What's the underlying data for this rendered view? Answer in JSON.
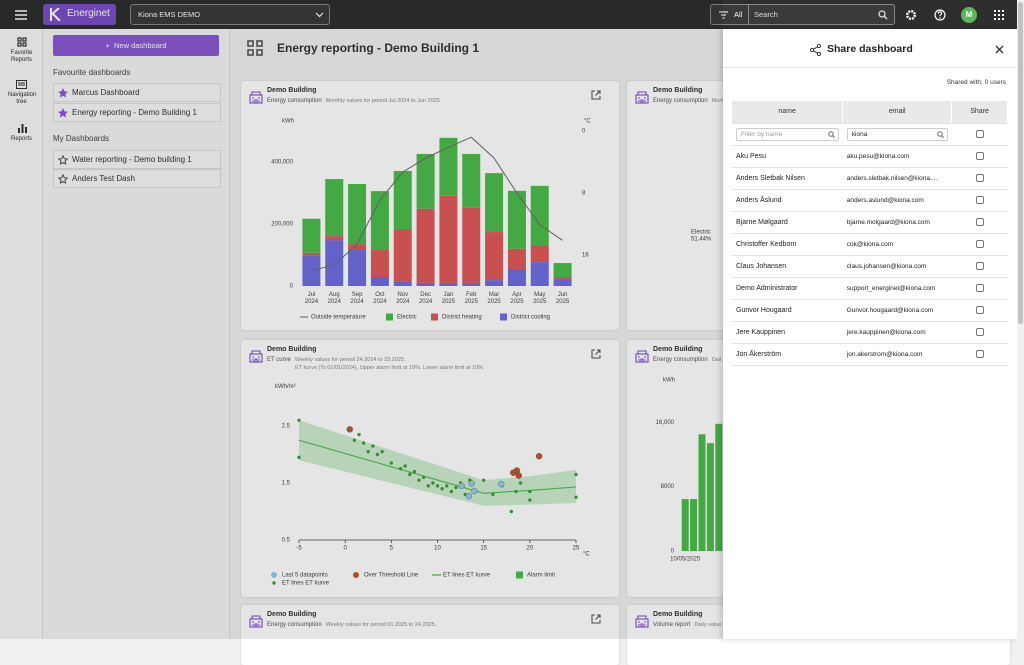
{
  "topbar": {
    "logo": "Energinet",
    "site": "Kiona EMS DEMO",
    "filter": "All",
    "search": "Search",
    "avatar": "M"
  },
  "rail": [
    "Favorite Reports",
    "Navigation tree",
    "Reports"
  ],
  "sidebar": {
    "new_button": "New dashboard",
    "favourites_title": "Favourite dashboards",
    "favourites": [
      "Marcus Dashboard",
      "Energy reporting - Demo Building 1"
    ],
    "mine_title": "My Dashboards",
    "mine": [
      "Water reporting - Demo building 1",
      "Anders Test Dash"
    ]
  },
  "main": {
    "title": "Energy reporting - Demo Building 1"
  },
  "cards": [
    {
      "building": "Demo Building",
      "report": "Energy consumption",
      "period": "Monthly values for period Jul 2024 to Jun 2025"
    },
    {
      "building": "Demo Building",
      "report": "Energy consumption",
      "period": "Monthly"
    },
    {
      "building": "Demo Building",
      "report": "ET curve",
      "period": "Weekly values for period 24.2024 to 23.2025.",
      "detail": "ET kurve (Ts 01/01/2024). Upper alarm limit at 10%. Lower alarm limit at 10%"
    },
    {
      "building": "Demo Building",
      "report": "Energy consumption",
      "period": "Dail"
    },
    {
      "building": "Demo Building",
      "report": "Energy consumption",
      "period": "Weekly values for period 01.2025 to 24.2025."
    },
    {
      "building": "Demo Building",
      "report": "Volume report",
      "period": "Daily value"
    }
  ],
  "chart_data": [
    {
      "type": "bar",
      "stacked": true,
      "y_label": "kWh",
      "y2_label": "°C",
      "categories": [
        "Jul 2024",
        "Aug 2024",
        "Sep 2024",
        "Oct 2024",
        "Nov 2024",
        "Dec 2024",
        "Jan 2025",
        "Feb 2025",
        "Mar 2025",
        "Apr 2025",
        "May 2025",
        "Jun 2025"
      ],
      "series": [
        {
          "name": "Outside temperature",
          "type": "line",
          "axis": "y2",
          "color": "#6b6b6b",
          "values": [
            18,
            17.3,
            14.6,
            8.9,
            5.3,
            3.5,
            2.1,
            0.8,
            3.5,
            8,
            12.1,
            14.1
          ]
        },
        {
          "name": "Electric",
          "color": "#4cbb4c",
          "values": [
            110000,
            184000,
            194000,
            190000,
            187000,
            177000,
            187000,
            174000,
            190000,
            187000,
            194000,
            45000
          ]
        },
        {
          "name": "District heating",
          "color": "#e05a5a",
          "values": [
            10000,
            13000,
            19000,
            87000,
            171000,
            239000,
            281000,
            242000,
            155000,
            65000,
            52000,
            6000
          ]
        },
        {
          "name": "District cooling",
          "color": "#6e6ee0",
          "values": [
            97000,
            148000,
            116000,
            29000,
            13000,
            10000,
            10000,
            10000,
            19000,
            55000,
            77000,
            23000
          ]
        }
      ],
      "ylim": [
        0,
        500000
      ],
      "yticks": [
        0,
        {
          "value": 200000,
          "label": "200,000"
        },
        {
          "value": 400000,
          "label": "400,000"
        }
      ],
      "y2lim": [
        20,
        0
      ],
      "y2ticks": [
        0,
        8,
        16
      ]
    },
    {
      "type": "pie",
      "categories": [
        "Electric"
      ],
      "values": [
        51.44
      ],
      "value_labels": [
        "51.44%"
      ]
    },
    {
      "type": "scatter",
      "y_label": "kWh/m²",
      "x_label": "°C",
      "series": [
        {
          "name": "Last 5 datapoints",
          "color": "#8fd0ea",
          "x": [
            13.7,
            14,
            13.4,
            12.6,
            16.9
          ],
          "y": [
            1.49,
            1.36,
            1.27,
            1.45,
            1.48
          ]
        },
        {
          "name": "Over Threshold Line",
          "color": "#c9552e",
          "x": [
            0.5,
            18.2,
            18.6,
            18.8,
            21
          ],
          "y": [
            2.44,
            1.68,
            1.72,
            1.63,
            1.97
          ]
        },
        {
          "name": "ET lines ET kurve",
          "type": "line",
          "color": "#4cbb4c",
          "x": [
            -5,
            15,
            20,
            25
          ],
          "y": [
            2.25,
            1.32,
            1.37,
            1.43
          ]
        },
        {
          "name": "Alarm limit",
          "type": "band",
          "color": "#4cbb4c",
          "x": [
            -5,
            15,
            20,
            25
          ],
          "lower": [
            1.9,
            1.1,
            1.12,
            1.15
          ],
          "upper": [
            2.6,
            1.55,
            1.62,
            1.73
          ]
        },
        {
          "name": "ET lines ET kurve",
          "color": "#3f9f3f",
          "x": [
            -5,
            -5,
            1,
            1.5,
            2,
            2.5,
            3,
            3.5,
            4,
            5,
            6,
            6.5,
            7,
            7.5,
            8,
            8.5,
            9,
            9.5,
            10,
            10.5,
            11,
            11.5,
            12,
            12.5,
            13,
            13.5,
            15,
            16,
            17,
            18,
            18.5,
            19,
            20,
            20,
            25,
            25
          ],
          "y": [
            2.6,
            1.95,
            2.25,
            2.35,
            2.2,
            2.05,
            2.15,
            2,
            2.05,
            1.85,
            1.75,
            1.8,
            1.65,
            1.7,
            1.55,
            1.6,
            1.45,
            1.5,
            1.45,
            1.4,
            1.45,
            1.35,
            1.42,
            1.5,
            1.3,
            1.55,
            1.55,
            1.3,
            1.45,
            1,
            1.35,
            1.5,
            1.35,
            1.2,
            1.65,
            1.25
          ]
        }
      ],
      "xlim": [
        -5,
        25
      ],
      "xticks": [
        -5,
        0,
        5,
        10,
        15,
        20,
        25
      ],
      "ylim": [
        0.5,
        3
      ],
      "yticks": [
        0.5,
        1.5,
        2.5
      ]
    },
    {
      "type": "bar",
      "y_label": "kWh",
      "categories": [
        "10/05/2025",
        null,
        null,
        null,
        null,
        null
      ],
      "values": [
        6450,
        6450,
        14500,
        13400,
        15800,
        13000
      ],
      "color": "#4cbb4c",
      "ylim": [
        0,
        20000
      ],
      "yticks": [
        0,
        8000,
        {
          "value": 16000,
          "label": "16,000"
        }
      ]
    }
  ],
  "drawer": {
    "title": "Share dashboard",
    "shared_label": "Shared with:",
    "shared_count": "0",
    "shared_unit": "users",
    "columns": [
      "name",
      "email",
      "Share"
    ],
    "name_filter": "Filter by name",
    "email_filter": "kiona",
    "rows": [
      [
        "Aku Pesu",
        "aku.pesu@kiona.com"
      ],
      [
        "Anders Sletbak Nilsen",
        "anders.sletbak.nilsen@kiona...."
      ],
      [
        "Anders Åslund",
        "anders.aslund@kiona.com"
      ],
      [
        "Bjarne Mølgaard",
        "bjarne.molgaard@kiona.com"
      ],
      [
        "Christoffer Kedborn",
        "cok@kiona.com"
      ],
      [
        "Claus Johansen",
        "claus.johansen@kiona.com"
      ],
      [
        "Demo Administrator",
        "support_energinet@kiona.com"
      ],
      [
        "Gunvor Hougaard",
        "Gunvor.hougaard@kiona.com"
      ],
      [
        "Jere Kauppinen",
        "jere.kauppinen@kiona.com"
      ],
      [
        "Jon Åkerström",
        "jon.akerstrom@kiona.com"
      ]
    ]
  }
}
